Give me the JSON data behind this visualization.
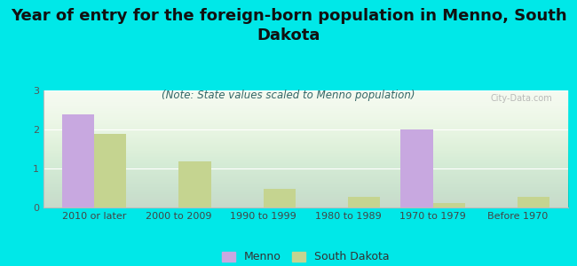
{
  "title": "Year of entry for the foreign-born population in Menno, South\nDakota",
  "subtitle": "(Note: State values scaled to Menno population)",
  "categories": [
    "2010 or later",
    "2000 to 2009",
    "1990 to 1999",
    "1980 to 1989",
    "1970 to 1979",
    "Before 1970"
  ],
  "menno_values": [
    2.38,
    0,
    0,
    0,
    2.0,
    0
  ],
  "sd_values": [
    1.88,
    1.18,
    0.48,
    0.28,
    0.12,
    0.28
  ],
  "menno_color": "#c8a8e0",
  "sd_color": "#c5d490",
  "background_color": "#00e8e8",
  "plot_bg_top": "#e8f0e0",
  "plot_bg_bottom": "#f5faf0",
  "ylim": [
    0,
    3
  ],
  "yticks": [
    0,
    1,
    2,
    3
  ],
  "bar_width": 0.38,
  "title_fontsize": 13,
  "subtitle_fontsize": 8.5,
  "tick_fontsize": 8,
  "legend_fontsize": 9
}
